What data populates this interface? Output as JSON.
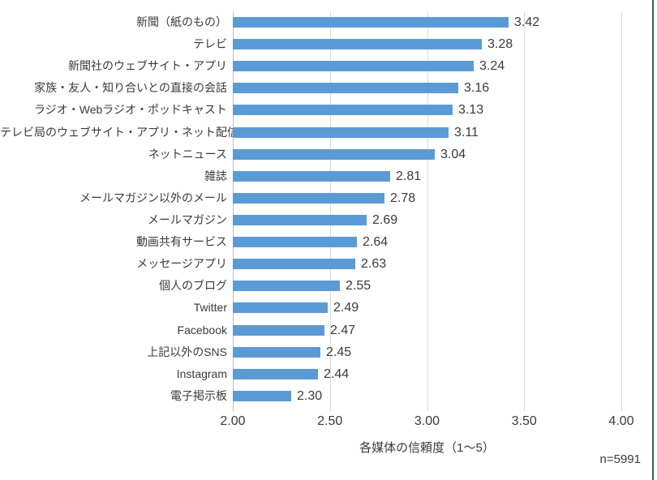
{
  "chart_data": {
    "type": "bar",
    "orientation": "horizontal",
    "categories": [
      "新聞（紙のもの）",
      "テレビ",
      "新聞社のウェブサイト・アプリ",
      "家族・友人・知り合いとの直接の会話",
      "ラジオ・Webラジオ・ポッドキャスト",
      "テレビ局のウェブサイト・アプリ・ネット配信",
      "ネットニュース",
      "雑誌",
      "メールマガジン以外のメール",
      "メールマガジン",
      "動画共有サービス",
      "メッセージアプリ",
      "個人のブログ",
      "Twitter",
      "Facebook",
      "上記以外のSNS",
      "Instagram",
      "電子掲示板"
    ],
    "values": [
      3.42,
      3.28,
      3.24,
      3.16,
      3.13,
      3.11,
      3.04,
      2.81,
      2.78,
      2.69,
      2.64,
      2.63,
      2.55,
      2.49,
      2.47,
      2.45,
      2.44,
      2.3
    ],
    "value_label_decimals": 2,
    "xlabel": "各媒体の信頼度（1～5）",
    "xlim": [
      2.0,
      4.0
    ],
    "xticks": [
      {
        "value": 2.0,
        "label": "2.00"
      },
      {
        "value": 2.5,
        "label": "2.50"
      },
      {
        "value": 3.0,
        "label": "3.00"
      },
      {
        "value": 3.5,
        "label": "3.50"
      },
      {
        "value": 4.0,
        "label": "4.00"
      }
    ],
    "note": "n=5991",
    "grid": true,
    "legend": "none",
    "colors": {
      "bar": "#5B9BD5",
      "gridline": "#D9D9D9",
      "axis_line": "#BFBFBF",
      "text": "#3a3a3a",
      "frame_edge": "#2F6852"
    }
  }
}
